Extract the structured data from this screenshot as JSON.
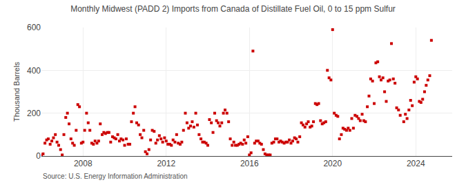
{
  "chart_data": {
    "type": "scatter",
    "title": "Monthly Midwest (PADD 2) Imports from Canada of Distillate Fuel Oil, 0 to 15 ppm Sulfur",
    "y_label": "Thousand Barrels",
    "annotations": [
      "Source: U.S. Energy Information Administration"
    ],
    "color": "#cc0000",
    "marker": "square",
    "grid": true,
    "xlim": [
      2006.0,
      2025.75
    ],
    "xticks": [
      2008,
      2012,
      2016,
      2020,
      2024
    ],
    "ylim": [
      0,
      600
    ],
    "yticks": [
      0,
      200,
      400,
      600
    ],
    "x": [
      2006.0,
      2006.08,
      2006.17,
      2006.25,
      2006.33,
      2006.42,
      2006.5,
      2006.58,
      2006.67,
      2006.75,
      2006.83,
      2006.92,
      2007.0,
      2007.08,
      2007.17,
      2007.25,
      2007.33,
      2007.42,
      2007.5,
      2007.58,
      2007.67,
      2007.75,
      2007.83,
      2007.92,
      2008.0,
      2008.08,
      2008.17,
      2008.25,
      2008.33,
      2008.42,
      2008.5,
      2008.58,
      2008.67,
      2008.75,
      2008.83,
      2008.92,
      2009.0,
      2009.08,
      2009.17,
      2009.25,
      2009.33,
      2009.42,
      2009.5,
      2009.58,
      2009.67,
      2009.75,
      2009.83,
      2009.92,
      2010.0,
      2010.08,
      2010.17,
      2010.25,
      2010.33,
      2010.42,
      2010.5,
      2010.58,
      2010.67,
      2010.75,
      2010.83,
      2010.92,
      2011.0,
      2011.08,
      2011.17,
      2011.25,
      2011.33,
      2011.42,
      2011.5,
      2011.58,
      2011.67,
      2011.75,
      2011.83,
      2011.92,
      2012.0,
      2012.08,
      2012.17,
      2012.25,
      2012.33,
      2012.42,
      2012.5,
      2012.58,
      2012.67,
      2012.75,
      2012.83,
      2012.92,
      2013.0,
      2013.08,
      2013.17,
      2013.25,
      2013.33,
      2013.42,
      2013.5,
      2013.58,
      2013.67,
      2013.75,
      2013.83,
      2013.92,
      2014.0,
      2014.08,
      2014.17,
      2014.25,
      2014.33,
      2014.42,
      2014.5,
      2014.58,
      2014.67,
      2014.75,
      2014.83,
      2014.92,
      2015.0,
      2015.08,
      2015.17,
      2015.25,
      2015.33,
      2015.42,
      2015.5,
      2015.58,
      2015.67,
      2015.75,
      2015.83,
      2015.92,
      2016.0,
      2016.08,
      2016.17,
      2016.25,
      2016.33,
      2016.42,
      2016.5,
      2016.58,
      2016.67,
      2016.75,
      2016.83,
      2016.92,
      2017.0,
      2017.08,
      2017.17,
      2017.25,
      2017.33,
      2017.42,
      2017.5,
      2017.58,
      2017.67,
      2017.75,
      2017.83,
      2017.92,
      2018.0,
      2018.08,
      2018.17,
      2018.25,
      2018.33,
      2018.42,
      2018.5,
      2018.58,
      2018.67,
      2018.75,
      2018.83,
      2018.92,
      2019.0,
      2019.08,
      2019.17,
      2019.25,
      2019.33,
      2019.42,
      2019.5,
      2019.58,
      2019.67,
      2019.75,
      2019.83,
      2019.92,
      2020.0,
      2020.08,
      2020.17,
      2020.25,
      2020.33,
      2020.42,
      2020.5,
      2020.58,
      2020.67,
      2020.75,
      2020.83,
      2020.92,
      2021.0,
      2021.08,
      2021.17,
      2021.25,
      2021.33,
      2021.42,
      2021.5,
      2021.58,
      2021.67,
      2021.75,
      2021.83,
      2021.92,
      2022.0,
      2022.08,
      2022.17,
      2022.25,
      2022.33,
      2022.42,
      2022.5,
      2022.58,
      2022.67,
      2022.75,
      2022.83,
      2022.92,
      2023.0,
      2023.08,
      2023.17,
      2023.25,
      2023.42,
      2023.5,
      2023.58,
      2023.67,
      2023.75,
      2023.83,
      2023.92,
      2024.0,
      2024.08,
      2024.17,
      2024.25,
      2024.33,
      2024.42,
      2024.5,
      2024.58,
      2024.67,
      2024.75
    ],
    "values": [
      5,
      10,
      60,
      75,
      80,
      55,
      70,
      85,
      100,
      65,
      50,
      30,
      5,
      100,
      180,
      200,
      150,
      80,
      60,
      50,
      120,
      240,
      230,
      60,
      65,
      120,
      200,
      155,
      120,
      60,
      55,
      70,
      60,
      70,
      150,
      100,
      110,
      105,
      110,
      110,
      65,
      90,
      85,
      80,
      100,
      70,
      80,
      75,
      50,
      80,
      55,
      55,
      160,
      200,
      230,
      155,
      145,
      100,
      85,
      120,
      20,
      10,
      30,
      75,
      120,
      115,
      60,
      75,
      95,
      80,
      65,
      85,
      70,
      55,
      55,
      50,
      75,
      65,
      100,
      60,
      55,
      65,
      120,
      200,
      155,
      130,
      140,
      160,
      135,
      200,
      145,
      100,
      80,
      65,
      65,
      60,
      50,
      170,
      155,
      110,
      200,
      165,
      155,
      140,
      155,
      200,
      215,
      200,
      160,
      80,
      50,
      65,
      50,
      50,
      55,
      60,
      55,
      75,
      60,
      90,
      5,
      15,
      490,
      60,
      70,
      70,
      60,
      55,
      30,
      10,
      5,
      5,
      5,
      60,
      65,
      80,
      80,
      65,
      70,
      65,
      60,
      65,
      65,
      75,
      60,
      70,
      85,
      80,
      65,
      90,
      155,
      145,
      135,
      150,
      160,
      135,
      140,
      160,
      245,
      240,
      245,
      165,
      150,
      155,
      160,
      400,
      365,
      355,
      590,
      200,
      190,
      185,
      80,
      100,
      130,
      125,
      120,
      130,
      120,
      175,
      130,
      190,
      185,
      175,
      165,
      195,
      165,
      160,
      230,
      280,
      360,
      350,
      245,
      435,
      440,
      370,
      355,
      365,
      300,
      255,
      350,
      355,
      525,
      360,
      340,
      225,
      215,
      190,
      160,
      195,
      175,
      215,
      260,
      235,
      345,
      370,
      360,
      255,
      250,
      265,
      300,
      330,
      355,
      375,
      540
    ]
  }
}
